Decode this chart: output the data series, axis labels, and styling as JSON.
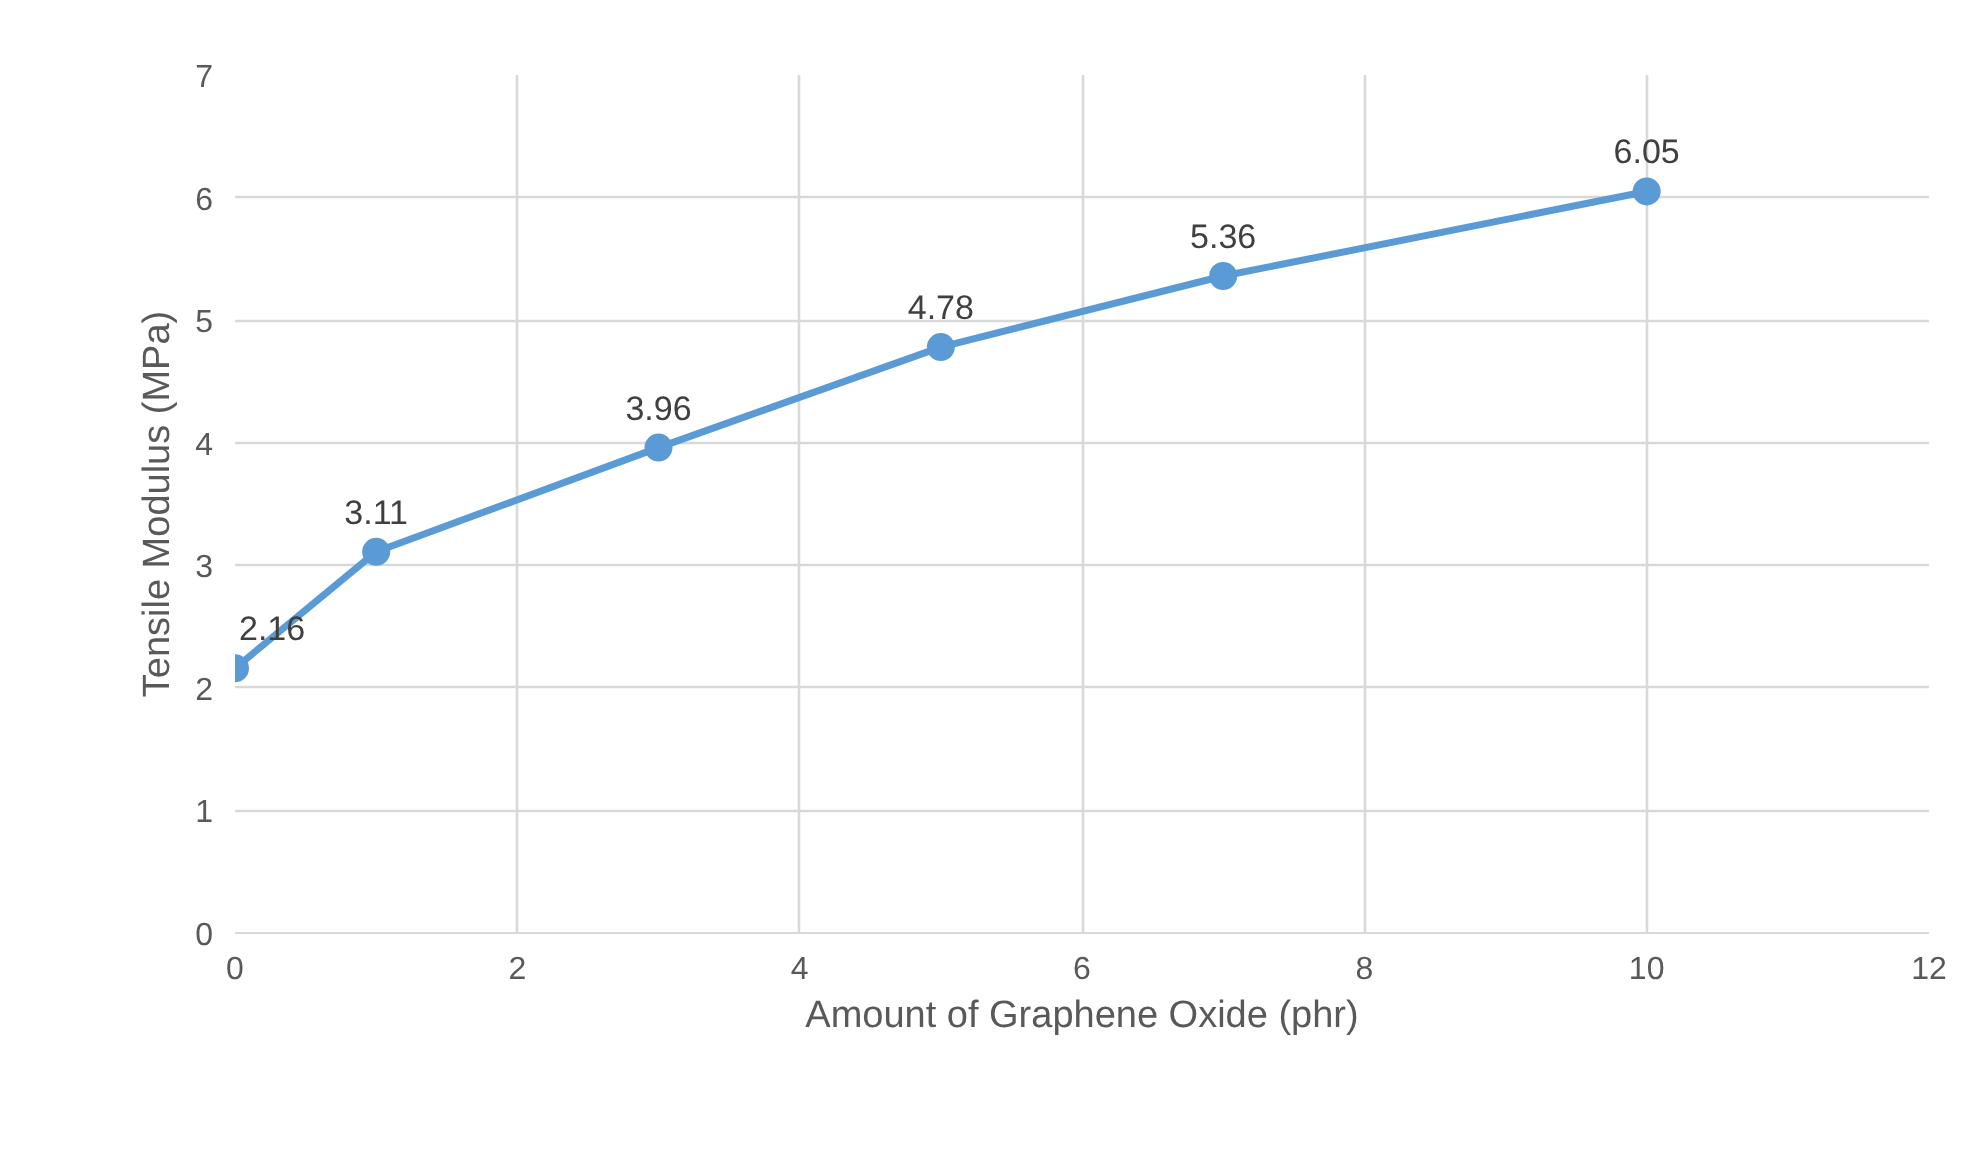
{
  "chart_data": {
    "type": "line",
    "xlabel": "Amount of Graphene Oxide (phr)",
    "ylabel": "Tensile Modulus (MPa)",
    "x": [
      0,
      1,
      3,
      5,
      7,
      10
    ],
    "series": [
      {
        "color": "#5b9bd5",
        "values": [
          2.16,
          3.11,
          3.96,
          4.78,
          5.36,
          6.05
        ]
      }
    ],
    "xlim": [
      0,
      12
    ],
    "xticks": [
      0,
      2,
      4,
      6,
      8,
      10,
      12
    ],
    "ylim": [
      0,
      7
    ],
    "yticks": [
      0,
      1,
      2,
      3,
      4,
      5,
      6,
      7
    ],
    "grid": true,
    "marker": "circle",
    "line_style": "solid",
    "data_labels": true
  }
}
